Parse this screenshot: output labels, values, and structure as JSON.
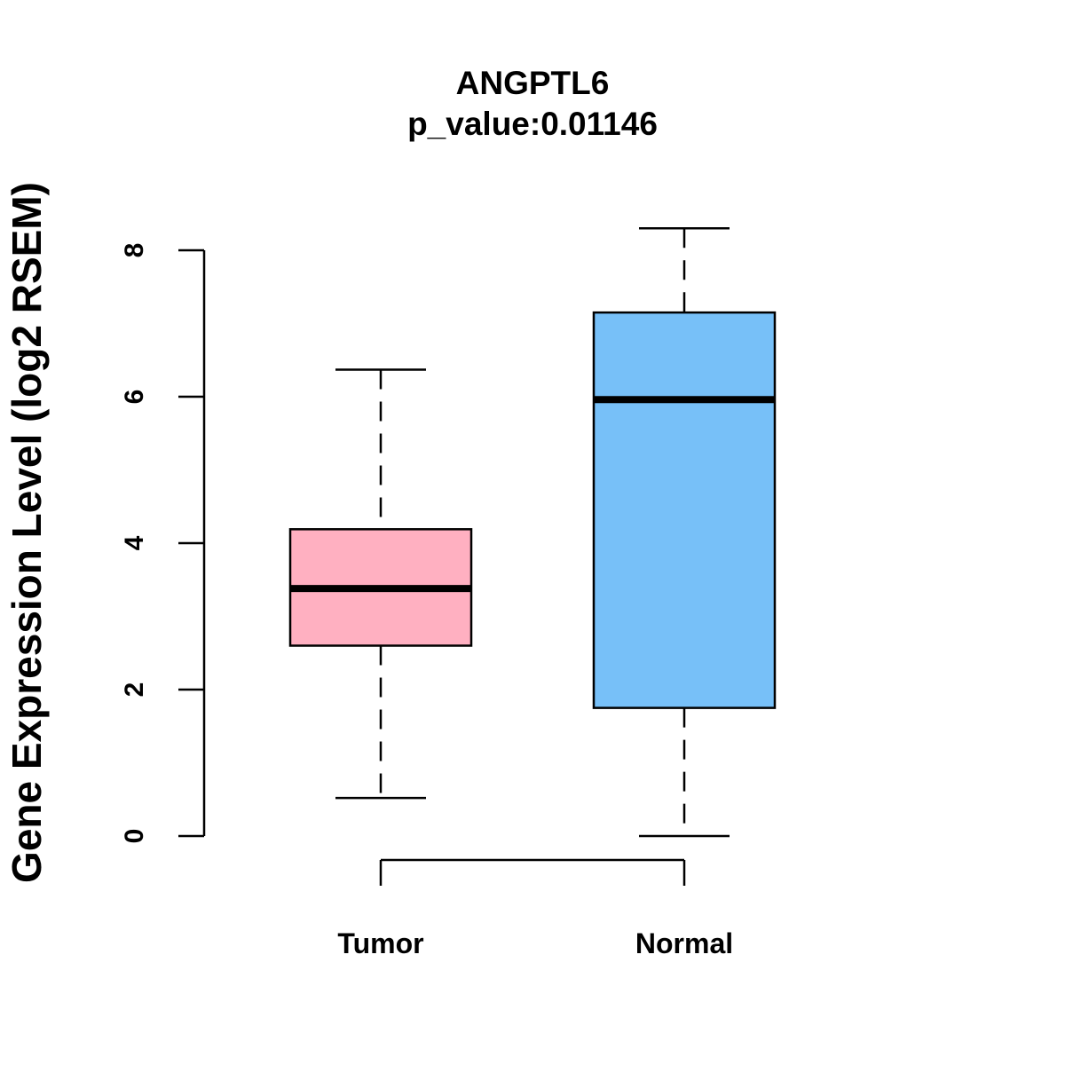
{
  "chart_data": {
    "type": "boxplot",
    "title": "ANGPTL6",
    "subtitle": "p_value:0.01146",
    "xlabel": "",
    "ylabel": "Gene Expression Level (log2 RSEM)",
    "ylim": [
      0,
      8.3
    ],
    "yticks": [
      0,
      2,
      4,
      6,
      8
    ],
    "categories": [
      "Tumor",
      "Normal"
    ],
    "boxes": [
      {
        "category": "Tumor",
        "min": 0.52,
        "q1": 2.6,
        "median": 3.38,
        "q3": 4.19,
        "max": 6.37,
        "fill": "#FFB0C1"
      },
      {
        "category": "Normal",
        "min": 0.0,
        "q1": 1.75,
        "median": 5.96,
        "q3": 7.15,
        "max": 8.3,
        "fill": "#77C0F8"
      }
    ],
    "grid": false,
    "legend": "none"
  }
}
